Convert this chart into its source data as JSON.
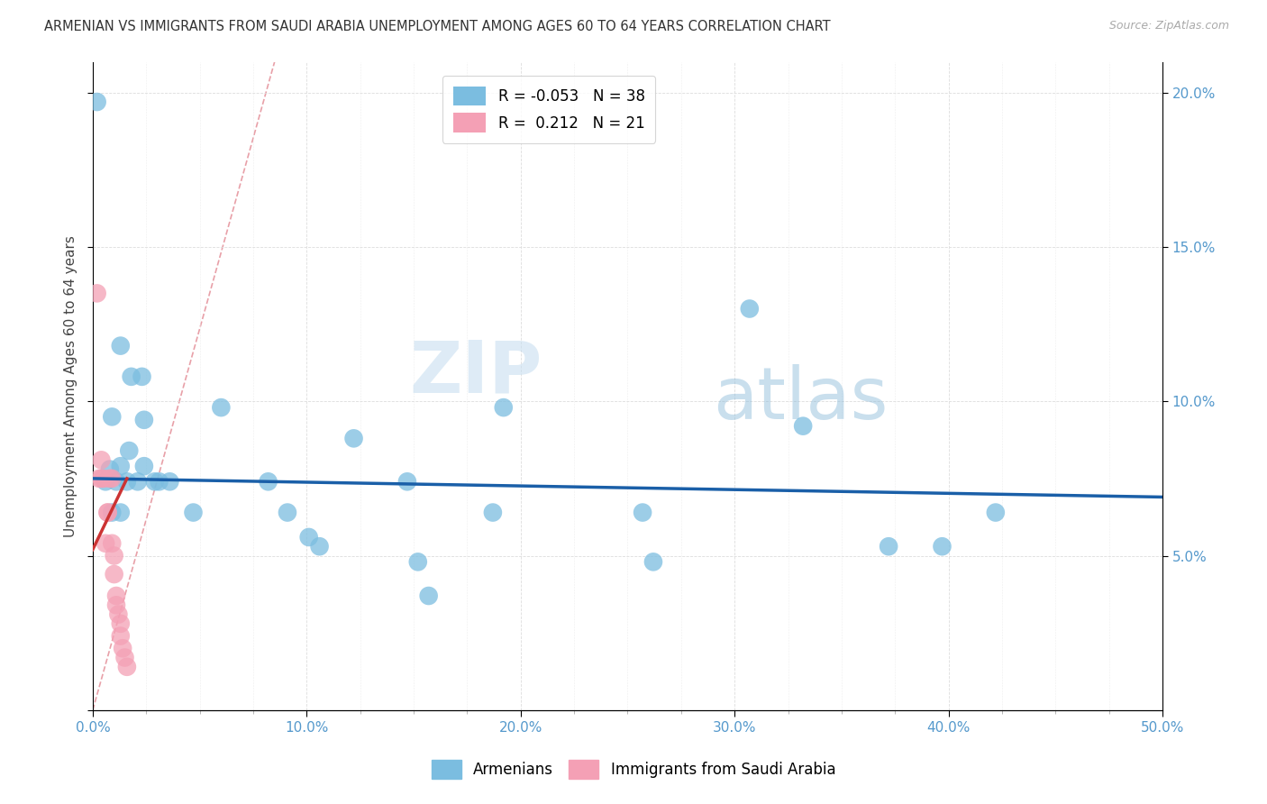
{
  "title": "ARMENIAN VS IMMIGRANTS FROM SAUDI ARABIA UNEMPLOYMENT AMONG AGES 60 TO 64 YEARS CORRELATION CHART",
  "source": "Source: ZipAtlas.com",
  "ylabel": "Unemployment Among Ages 60 to 64 years",
  "xmin": 0.0,
  "xmax": 0.5,
  "ymin": 0.0,
  "ymax": 0.21,
  "xtick_major": [
    0.0,
    0.1,
    0.2,
    0.3,
    0.4,
    0.5
  ],
  "xticklabels": [
    "0.0%",
    "10.0%",
    "20.0%",
    "30.0%",
    "40.0%",
    "50.0%"
  ],
  "yticks_right": [
    0.05,
    0.1,
    0.15,
    0.2
  ],
  "ytick_labels_right": [
    "5.0%",
    "10.0%",
    "15.0%",
    "20.0%"
  ],
  "blue_R": -0.053,
  "blue_N": 38,
  "pink_R": 0.212,
  "pink_N": 21,
  "blue_color": "#7bbde0",
  "pink_color": "#f4a0b5",
  "blue_line_color": "#1a5fa8",
  "pink_line_color": "#cc3333",
  "diagonal_line_color": "#e8a0a8",
  "watermark_zip": "ZIP",
  "watermark_atlas": "atlas",
  "armenian_points": [
    [
      0.002,
      0.197
    ],
    [
      0.013,
      0.118
    ],
    [
      0.018,
      0.108
    ],
    [
      0.023,
      0.108
    ],
    [
      0.009,
      0.095
    ],
    [
      0.017,
      0.084
    ],
    [
      0.024,
      0.094
    ],
    [
      0.008,
      0.078
    ],
    [
      0.013,
      0.079
    ],
    [
      0.006,
      0.074
    ],
    [
      0.011,
      0.074
    ],
    [
      0.016,
      0.074
    ],
    [
      0.021,
      0.074
    ],
    [
      0.024,
      0.079
    ],
    [
      0.029,
      0.074
    ],
    [
      0.031,
      0.074
    ],
    [
      0.036,
      0.074
    ],
    [
      0.009,
      0.064
    ],
    [
      0.013,
      0.064
    ],
    [
      0.047,
      0.064
    ],
    [
      0.06,
      0.098
    ],
    [
      0.082,
      0.074
    ],
    [
      0.091,
      0.064
    ],
    [
      0.101,
      0.056
    ],
    [
      0.106,
      0.053
    ],
    [
      0.122,
      0.088
    ],
    [
      0.147,
      0.074
    ],
    [
      0.152,
      0.048
    ],
    [
      0.157,
      0.037
    ],
    [
      0.187,
      0.064
    ],
    [
      0.192,
      0.098
    ],
    [
      0.257,
      0.064
    ],
    [
      0.262,
      0.048
    ],
    [
      0.307,
      0.13
    ],
    [
      0.332,
      0.092
    ],
    [
      0.372,
      0.053
    ],
    [
      0.397,
      0.053
    ],
    [
      0.422,
      0.064
    ]
  ],
  "pink_points": [
    [
      0.002,
      0.135
    ],
    [
      0.003,
      0.075
    ],
    [
      0.004,
      0.075
    ],
    [
      0.004,
      0.081
    ],
    [
      0.005,
      0.075
    ],
    [
      0.006,
      0.054
    ],
    [
      0.007,
      0.064
    ],
    [
      0.007,
      0.064
    ],
    [
      0.008,
      0.075
    ],
    [
      0.009,
      0.075
    ],
    [
      0.009,
      0.054
    ],
    [
      0.01,
      0.05
    ],
    [
      0.01,
      0.044
    ],
    [
      0.011,
      0.037
    ],
    [
      0.011,
      0.034
    ],
    [
      0.012,
      0.031
    ],
    [
      0.013,
      0.028
    ],
    [
      0.013,
      0.024
    ],
    [
      0.014,
      0.02
    ],
    [
      0.015,
      0.017
    ],
    [
      0.016,
      0.014
    ]
  ],
  "blue_line_x0": 0.0,
  "blue_line_y0": 0.075,
  "blue_line_x1": 0.5,
  "blue_line_y1": 0.069,
  "pink_line_x0": 0.0,
  "pink_line_y0": 0.052,
  "pink_line_x1": 0.016,
  "pink_line_y1": 0.075
}
